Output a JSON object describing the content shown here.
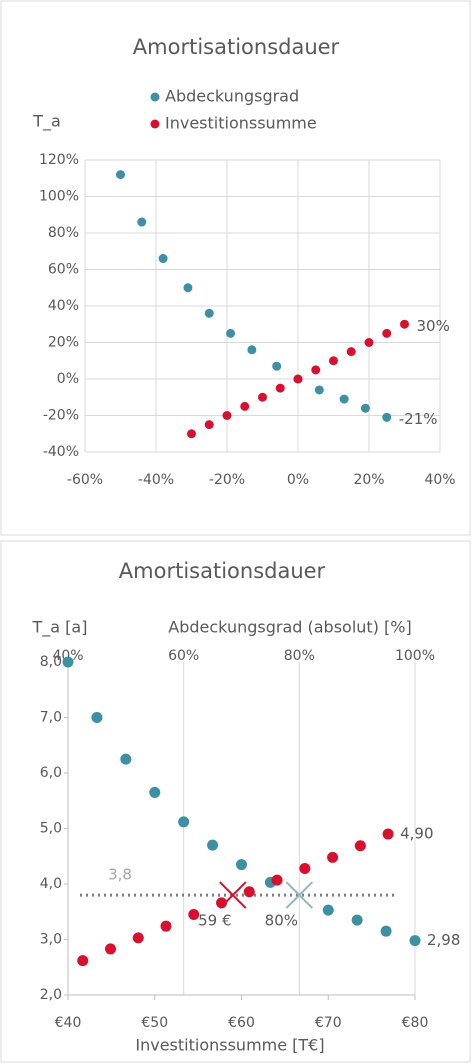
{
  "chart_data": [
    {
      "type": "scatter",
      "title": "Amortisationsdauer",
      "ylabel": "T_a",
      "xlim": [
        -60,
        40
      ],
      "xticks": [
        {
          "value": -60,
          "label": "-60%"
        },
        {
          "value": -40,
          "label": "-40%"
        },
        {
          "value": -20,
          "label": "-20%"
        },
        {
          "value": 0,
          "label": "0%"
        },
        {
          "value": 20,
          "label": "20%"
        },
        {
          "value": 40,
          "label": "40%"
        }
      ],
      "ylim": [
        -40,
        120
      ],
      "yticks": [
        {
          "value": 120,
          "label": "120%"
        },
        {
          "value": 100,
          "label": "100%"
        },
        {
          "value": 80,
          "label": "80%"
        },
        {
          "value": 60,
          "label": "60%"
        },
        {
          "value": 40,
          "label": "40%"
        },
        {
          "value": 20,
          "label": "20%"
        },
        {
          "value": 0,
          "label": "0%"
        },
        {
          "value": -20,
          "label": "-20%"
        },
        {
          "value": -40,
          "label": "-40%"
        }
      ],
      "grid": true,
      "legend": "top",
      "series": [
        {
          "name": "Abdeckungsgrad",
          "color": "#3d8fa3",
          "x": [
            -50,
            -44,
            -38,
            -31,
            -25,
            -19,
            -13,
            -6,
            0,
            6,
            13,
            19,
            25
          ],
          "values": [
            112,
            86,
            66,
            50,
            36,
            25,
            16,
            7,
            0,
            -6,
            -11,
            -16,
            -21
          ],
          "value_labels": [
            null,
            null,
            null,
            null,
            null,
            null,
            null,
            null,
            null,
            null,
            null,
            null,
            "-21%"
          ]
        },
        {
          "name": "Investitionssumme",
          "color": "#d9102d",
          "x": [
            -30,
            -25,
            -20,
            -15,
            -10,
            -5,
            0,
            5,
            10,
            15,
            20,
            25,
            30
          ],
          "values": [
            -30,
            -25,
            -20,
            -15,
            -10,
            -5,
            0,
            5,
            10,
            15,
            20,
            25,
            30
          ],
          "value_labels": [
            null,
            null,
            null,
            null,
            null,
            null,
            null,
            null,
            null,
            null,
            null,
            null,
            "30%"
          ]
        }
      ]
    },
    {
      "type": "scatter",
      "title": "Amortisationsdauer",
      "ylabel": "T_a [a]",
      "xlabel": "Investitionssumme [T€]",
      "x2label": "Abdeckungsgrad (absolut) [%]",
      "xlim": [
        40,
        80
      ],
      "xticks": [
        {
          "value": 40,
          "label": "€40"
        },
        {
          "value": 50,
          "label": "€50"
        },
        {
          "value": 60,
          "label": "€60"
        },
        {
          "value": 70,
          "label": "€70"
        },
        {
          "value": 80,
          "label": "€80"
        }
      ],
      "x2lim": [
        40,
        100
      ],
      "x2ticks": [
        {
          "value": 40,
          "label": "40%"
        },
        {
          "value": 60,
          "label": "60%"
        },
        {
          "value": 80,
          "label": "80%"
        },
        {
          "value": 100,
          "label": "100%"
        }
      ],
      "ylim": [
        2,
        8
      ],
      "yticks": [
        {
          "value": 8,
          "label": "8,0"
        },
        {
          "value": 7,
          "label": "7,0"
        },
        {
          "value": 6,
          "label": "6,0"
        },
        {
          "value": 5,
          "label": "5,0"
        },
        {
          "value": 4,
          "label": "4,0"
        },
        {
          "value": 3,
          "label": "3,0"
        },
        {
          "value": 2,
          "label": "2,0"
        }
      ],
      "grid": true,
      "reference_line": {
        "value": 3.8,
        "label": "3,8",
        "color": "#808080"
      },
      "markers": [
        {
          "x": 59,
          "y": 3.8,
          "label": "59 €",
          "axis": "x",
          "color": "#d9102d"
        },
        {
          "x": 80,
          "y": 3.8,
          "label": "80%",
          "axis": "x2",
          "color": "#8fb9c2"
        }
      ],
      "series": [
        {
          "name": "Abdeckungsgrad",
          "color": "#3d8fa3",
          "axis": "x2",
          "x": [
            40,
            45,
            50,
            55,
            60,
            65,
            70,
            75,
            85,
            90,
            95,
            100
          ],
          "values": [
            8.0,
            7.0,
            6.25,
            5.65,
            5.12,
            4.7,
            4.35,
            4.03,
            3.53,
            3.35,
            3.15,
            2.98
          ],
          "value_labels": [
            null,
            null,
            null,
            null,
            null,
            null,
            null,
            null,
            null,
            null,
            null,
            "2,98"
          ]
        },
        {
          "name": "Investitionssumme",
          "color": "#d9102d",
          "x": [
            41.7,
            44.9,
            48.1,
            51.3,
            54.5,
            57.7,
            60.9,
            64.1,
            67.3,
            70.5,
            73.7,
            76.9
          ],
          "values": [
            2.62,
            2.83,
            3.03,
            3.24,
            3.45,
            3.66,
            3.86,
            4.07,
            4.28,
            4.48,
            4.69,
            4.9
          ],
          "value_labels": [
            null,
            null,
            null,
            null,
            null,
            null,
            null,
            null,
            null,
            null,
            null,
            "4,90"
          ]
        }
      ]
    }
  ]
}
